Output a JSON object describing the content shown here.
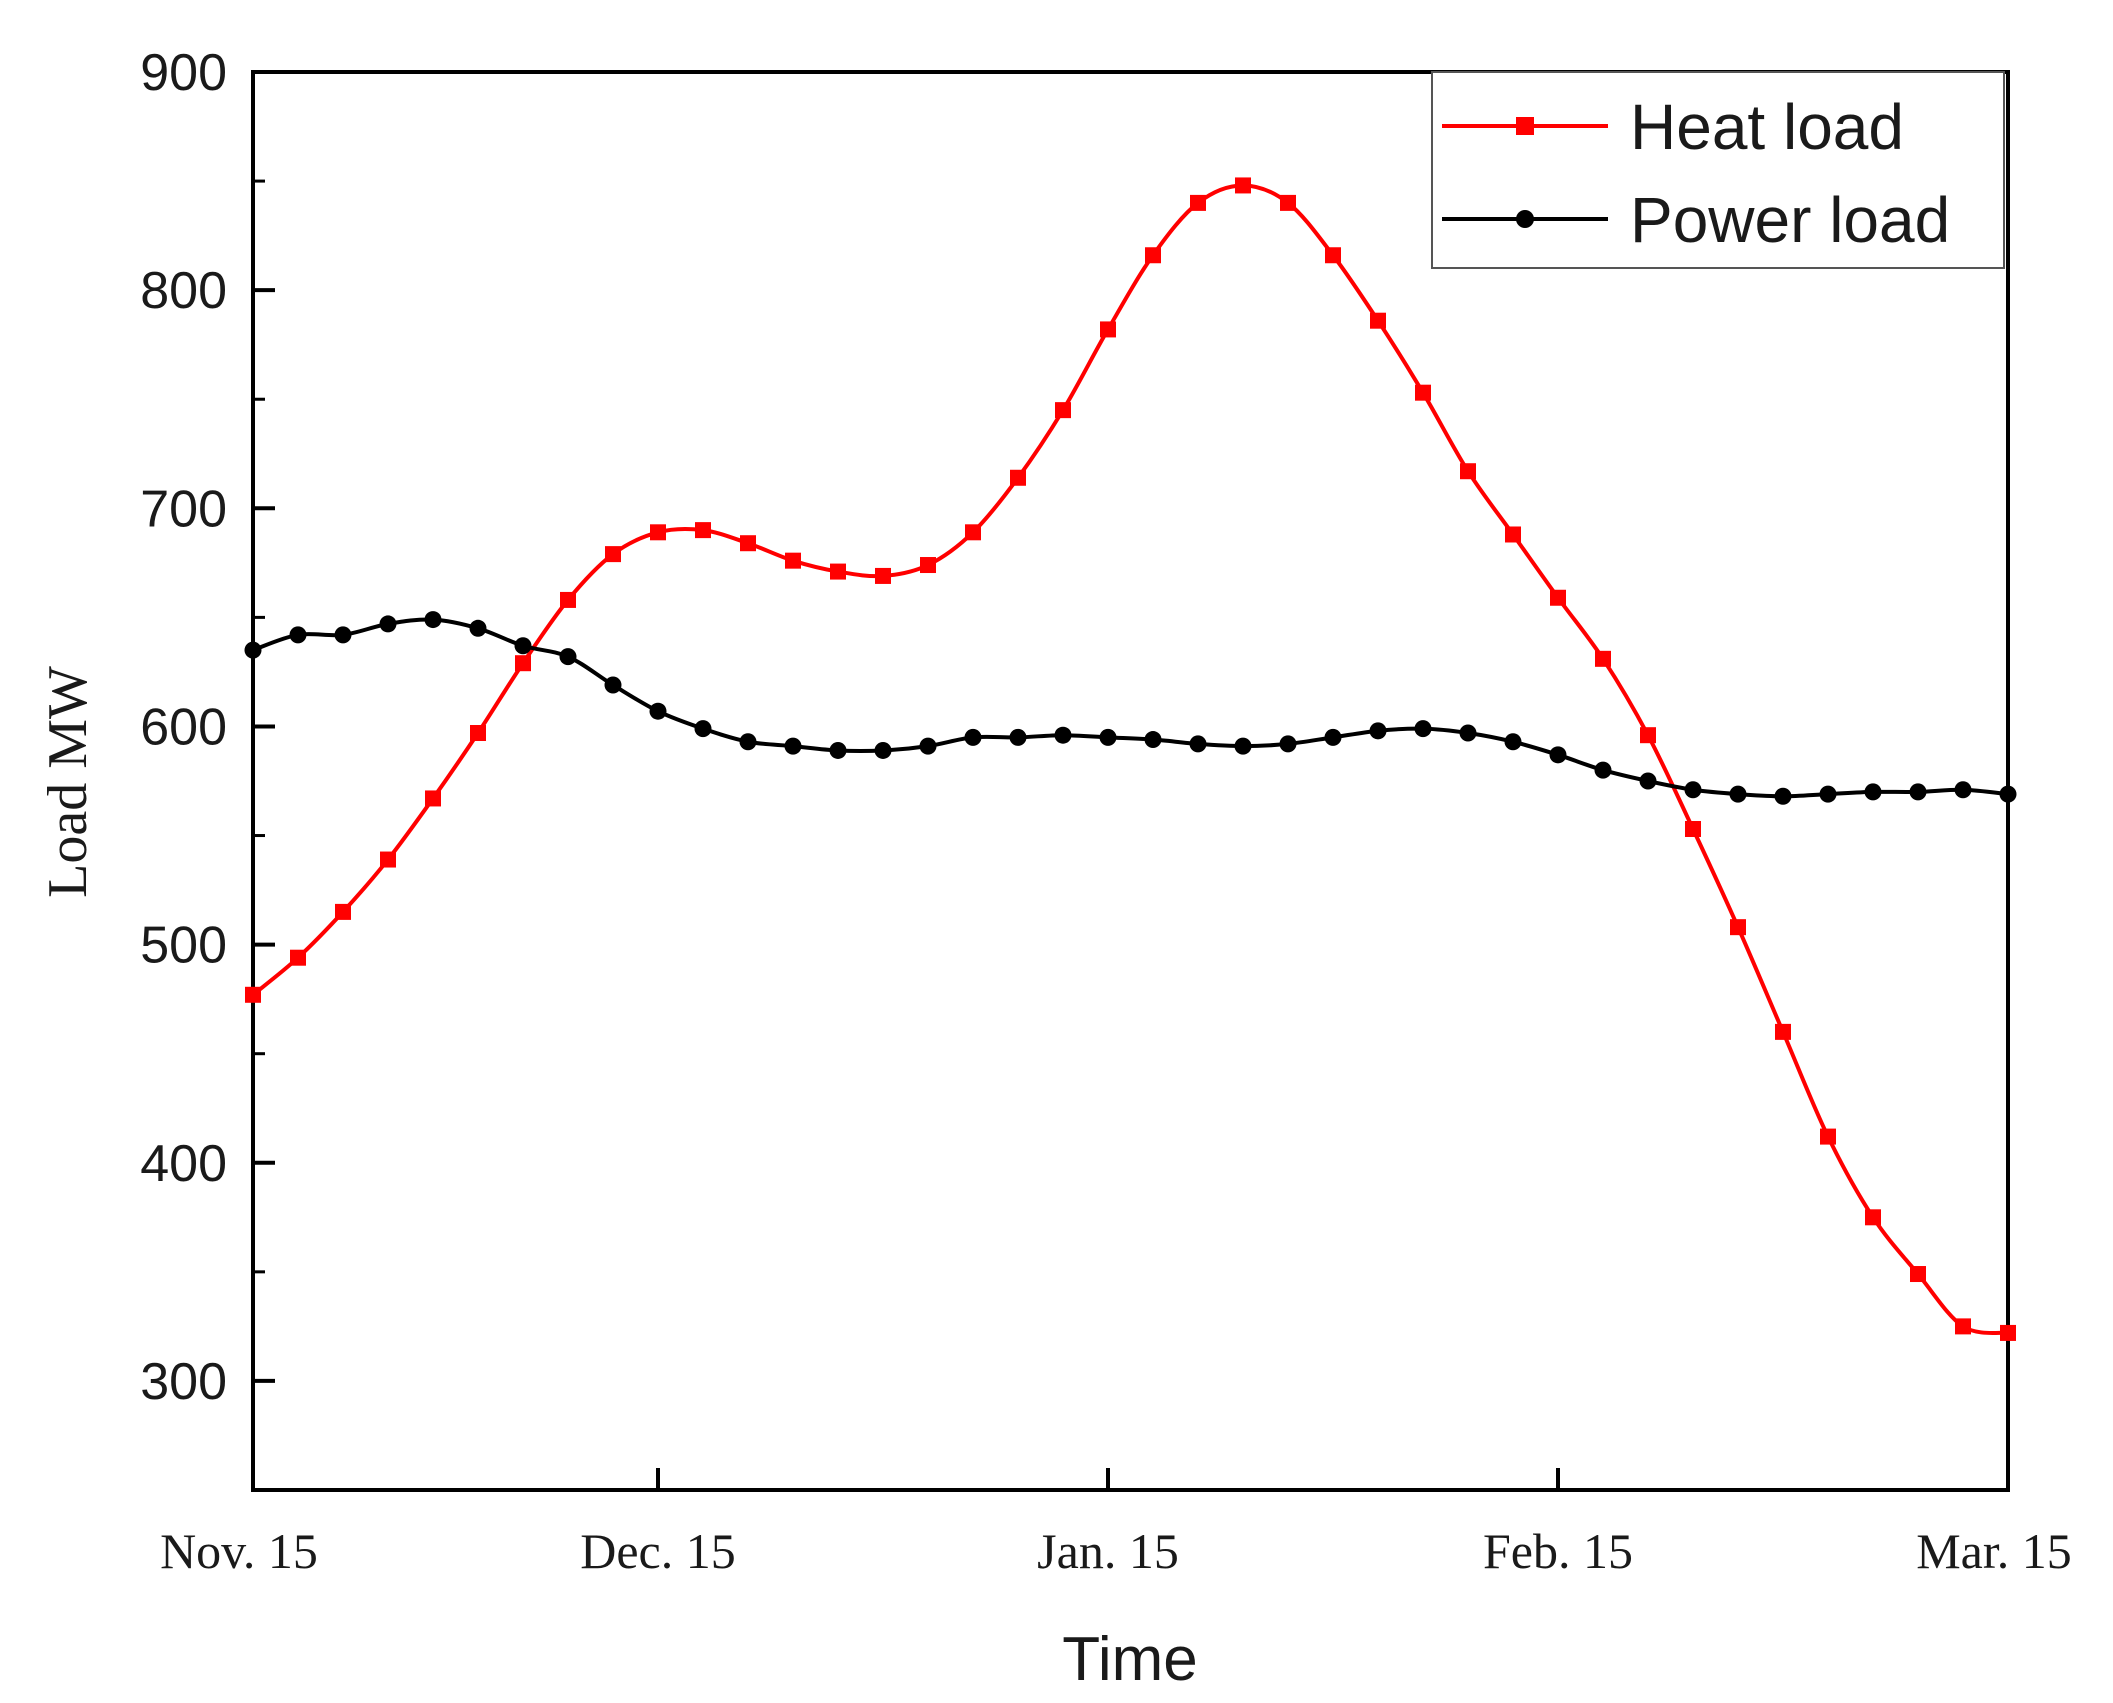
{
  "chart_data": {
    "type": "line",
    "title": "",
    "xlabel": "Time",
    "ylabel": "Load MW",
    "x_tick_labels": [
      "Nov. 15",
      "Dec. 15",
      "Jan. 15",
      "Feb. 15",
      "Mar. 15"
    ],
    "x_tick_positions": [
      0,
      9,
      19,
      29,
      39
    ],
    "x_range": [
      0,
      39
    ],
    "ylim": [
      250,
      900
    ],
    "y_ticks": [
      300,
      400,
      500,
      600,
      700,
      800,
      900
    ],
    "grid": false,
    "legend_position": "top-right",
    "series": [
      {
        "name": "Heat load",
        "color": "#ff0000",
        "marker": "square",
        "values": [
          477,
          494,
          515,
          539,
          567,
          597,
          629,
          658,
          679,
          689,
          690,
          684,
          676,
          671,
          669,
          674,
          689,
          714,
          745,
          782,
          816,
          840,
          848,
          840,
          816,
          786,
          753,
          717,
          688,
          659,
          631,
          596,
          553,
          508,
          460,
          412,
          375,
          349,
          325,
          322
        ]
      },
      {
        "name": "Power load",
        "color": "#000000",
        "marker": "circle",
        "values": [
          635,
          642,
          642,
          647,
          649,
          645,
          637,
          632,
          619,
          607,
          599,
          593,
          591,
          589,
          589,
          591,
          595,
          595,
          596,
          595,
          594,
          592,
          591,
          592,
          595,
          598,
          599,
          597,
          593,
          587,
          580,
          575,
          571,
          569,
          568,
          569,
          570,
          570,
          571,
          569
        ]
      }
    ]
  }
}
